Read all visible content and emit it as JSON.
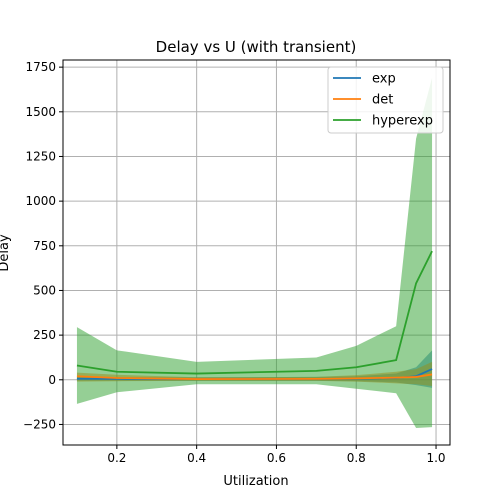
{
  "chart_data": {
    "type": "line",
    "title": "Delay vs U (with transient)",
    "xlabel": "Utilization",
    "ylabel": "Delay",
    "xlim": [
      0.065,
      1.035
    ],
    "ylim": [
      -365,
      1790
    ],
    "xticks": [
      0.2,
      0.4,
      0.6,
      0.8,
      1.0
    ],
    "xtick_labels": [
      "0.2",
      "0.4",
      "0.6",
      "0.8",
      "1.0"
    ],
    "yticks": [
      -250,
      0,
      250,
      500,
      750,
      1000,
      1250,
      1500,
      1750
    ],
    "ytick_labels": [
      "−250",
      "0",
      "250",
      "500",
      "750",
      "1000",
      "1250",
      "1500",
      "1750"
    ],
    "grid": true,
    "legend_position": "top-right",
    "x": [
      0.1,
      0.2,
      0.4,
      0.7,
      0.8,
      0.9,
      0.95,
      0.99
    ],
    "series": [
      {
        "name": "exp",
        "color": "#1f77b4",
        "values": [
          6,
          5,
          4,
          5,
          6,
          10,
          20,
          60
        ],
        "lower": [
          -5,
          -5,
          -6,
          -6,
          -8,
          -15,
          -30,
          -45
        ],
        "upper": [
          17,
          15,
          14,
          16,
          20,
          35,
          70,
          165
        ]
      },
      {
        "name": "det",
        "color": "#ff7f0e",
        "values": [
          20,
          10,
          4,
          5,
          8,
          12,
          16,
          30
        ],
        "lower": [
          -10,
          -8,
          -6,
          -6,
          -10,
          -20,
          -25,
          -35
        ],
        "upper": [
          40,
          28,
          14,
          16,
          26,
          45,
          60,
          100
        ]
      },
      {
        "name": "hyperexp",
        "color": "#2ca02c",
        "values": [
          80,
          45,
          35,
          50,
          70,
          110,
          540,
          720
        ],
        "lower": [
          -135,
          -70,
          -25,
          -25,
          -50,
          -75,
          -270,
          -265
        ],
        "upper": [
          295,
          165,
          100,
          125,
          190,
          300,
          1350,
          1690
        ]
      }
    ]
  }
}
